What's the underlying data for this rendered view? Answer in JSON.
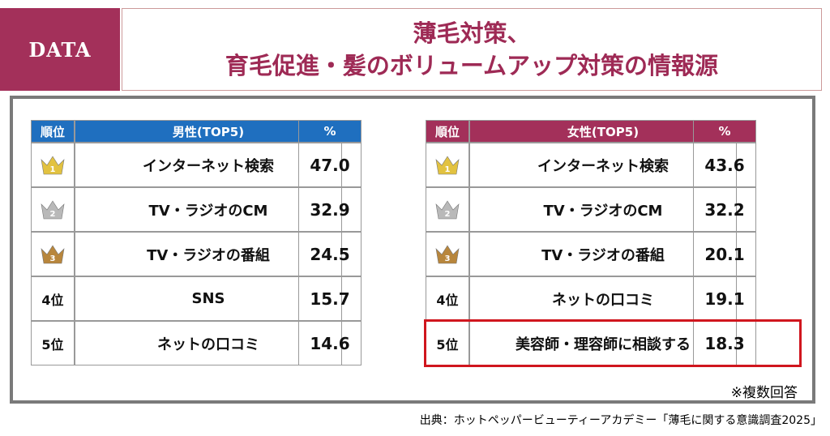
{
  "header": {
    "badge": "DATA",
    "title_lines": [
      "薄毛対策、",
      "育毛促進・髪のボリュームアップ対策の情報源"
    ]
  },
  "tables": [
    {
      "header_color": "#1f6fbf",
      "headers": [
        "順位",
        "男性(TOP5)",
        "%"
      ],
      "rows": [
        {
          "rank": "1",
          "crown": "#e2c240",
          "item": "インターネット検索",
          "value": "47.0"
        },
        {
          "rank": "2",
          "crown": "#b9b9b9",
          "item": "TV・ラジオのCM",
          "value": "32.9"
        },
        {
          "rank": "3",
          "crown": "#b8863c",
          "item": "TV・ラジオの番組",
          "value": "24.5"
        },
        {
          "rank": "4位",
          "item": "SNS",
          "value": "15.7"
        },
        {
          "rank": "5位",
          "item": "ネットの口コミ",
          "value": "14.6"
        }
      ]
    },
    {
      "header_color": "#a3305a",
      "headers": [
        "順位",
        "女性(TOP5)",
        "%"
      ],
      "rows": [
        {
          "rank": "1",
          "crown": "#e2c240",
          "item": "インターネット検索",
          "value": "43.6"
        },
        {
          "rank": "2",
          "crown": "#b9b9b9",
          "item": "TV・ラジオのCM",
          "value": "32.2"
        },
        {
          "rank": "3",
          "crown": "#b8863c",
          "item": "TV・ラジオの番組",
          "value": "20.1"
        },
        {
          "rank": "4位",
          "item": "ネットの口コミ",
          "value": "19.1"
        },
        {
          "rank": "5位",
          "item": "美容師・理容師に相談する",
          "value": "18.3",
          "highlight": true
        }
      ]
    }
  ],
  "footnote": "※複数回答",
  "source": "出典：ホットペッパービューティーアカデミー「薄毛に関する意識調査2025」"
}
